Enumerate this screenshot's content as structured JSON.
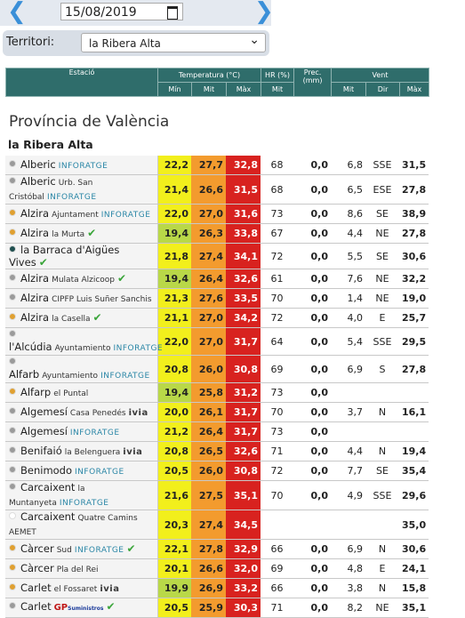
{
  "date": "15/08/2019",
  "territori_label": "Territori:",
  "territori_value": "la Ribera Alta",
  "table_header": {
    "station": "Estació",
    "temp": "Temperatura (°C)",
    "hr": "HR (%)",
    "prec": "Prec. (mm)",
    "wind": "Vent",
    "sub": [
      "Mín",
      "Mit",
      "Màx",
      "Mit",
      "Mit",
      "Dir",
      "Màx"
    ]
  },
  "province": "Província de València",
  "region": "la Ribera Alta",
  "rows": [
    {
      "dot": "#9a9a9a",
      "name": "Alberic",
      "badge": "INFORATGE",
      "min": "22,2",
      "mit": "27,7",
      "max": "32,8",
      "hr": "68",
      "prec": "0,0",
      "vmit": "6,8",
      "dir": "SSE",
      "vmax": "31,5"
    },
    {
      "dot": "#9a9a9a",
      "name": "Alberic",
      "sub": "Urb. San Cristóbal",
      "badge": "INFORATGE",
      "min": "21,4",
      "mit": "26,6",
      "max": "31,5",
      "hr": "68",
      "prec": "0,0",
      "vmit": "6,5",
      "dir": "ESE",
      "vmax": "27,8"
    },
    {
      "dot": "#e0a030",
      "name": "Alzira",
      "sub": "Ajuntament",
      "badge": "INFORATGE",
      "min": "22,0",
      "mit": "27,0",
      "max": "31,6",
      "hr": "73",
      "prec": "0,0",
      "vmit": "8,6",
      "dir": "SE",
      "vmax": "38,9"
    },
    {
      "dot": "#e0a030",
      "name": "Alzira",
      "sub": "la Murta",
      "check": "✔",
      "min": "19,4",
      "mit": "26,3",
      "max": "33,8",
      "hr": "67",
      "prec": "0,0",
      "vmit": "4,4",
      "dir": "NE",
      "vmax": "27,8"
    },
    {
      "dot": "#1f4f4f",
      "name": "la Barraca d'Aigües Vives",
      "check": "✔",
      "min": "21,8",
      "mit": "27,4",
      "max": "34,1",
      "hr": "72",
      "prec": "0,0",
      "vmit": "5,5",
      "dir": "SE",
      "vmax": "30,6"
    },
    {
      "dot": "#9a9a9a",
      "name": "Alzira",
      "sub": "Mulata Alzicoop",
      "check": "✔",
      "min": "19,4",
      "mit": "26,4",
      "max": "32,6",
      "hr": "61",
      "prec": "0,0",
      "vmit": "7,6",
      "dir": "NE",
      "vmax": "32,2"
    },
    {
      "dot": "#9a9a9a",
      "name": "Alzira",
      "sub": "CIPFP Luis Suñer Sanchis",
      "min": "21,3",
      "mit": "27,6",
      "max": "33,5",
      "hr": "70",
      "prec": "0,0",
      "vmit": "1,4",
      "dir": "NE",
      "vmax": "19,0"
    },
    {
      "dot": "#e0a030",
      "name": "Alzira",
      "sub": "la Casella",
      "check": "✔",
      "min": "21,1",
      "mit": "27,0",
      "max": "34,2",
      "hr": "72",
      "prec": "0,0",
      "vmit": "4,0",
      "dir": "E",
      "vmax": "25,7"
    },
    {
      "dot": "#9a9a9a",
      "name": "l'Alcúdia",
      "sub": "Ayuntamiento",
      "badge": "INFORATGE",
      "min": "22,0",
      "mit": "27,0",
      "max": "31,7",
      "hr": "64",
      "prec": "0,0",
      "vmit": "5,4",
      "dir": "SSE",
      "vmax": "29,5"
    },
    {
      "dot": "#9a9a9a",
      "name": "Alfarb",
      "sub": "Ayuntamiento",
      "badge": "INFORATGE",
      "min": "20,8",
      "mit": "26,0",
      "max": "30,8",
      "hr": "69",
      "prec": "0,0",
      "vmit": "6,9",
      "dir": "S",
      "vmax": "27,8"
    },
    {
      "dot": "#e0a030",
      "name": "Alfarp",
      "sub": "el Puntal",
      "min": "19,4",
      "mit": "25,8",
      "max": "31,2",
      "hr": "73",
      "prec": "0,0"
    },
    {
      "dot": "#9a9a9a",
      "name": "Algemesí",
      "sub": "Casa Penedés",
      "badge": "ivia",
      "min": "20,0",
      "mit": "26,1",
      "max": "31,7",
      "hr": "70",
      "prec": "0,0",
      "vmit": "3,7",
      "dir": "N",
      "vmax": "16,1"
    },
    {
      "dot": "#9a9a9a",
      "name": "Algemesí",
      "badge": "INFORATGE",
      "min": "21,2",
      "mit": "26,4",
      "max": "31,7",
      "hr": "73",
      "prec": "0,0"
    },
    {
      "dot": "#9a9a9a",
      "name": "Benifaió",
      "sub": "la Belenguera",
      "badge": "ivia",
      "min": "20,8",
      "mit": "26,5",
      "max": "32,6",
      "hr": "71",
      "prec": "0,0",
      "vmit": "4,4",
      "dir": "N",
      "vmax": "19,4"
    },
    {
      "dot": "#9a9a9a",
      "name": "Benimodo",
      "badge": "INFORATGE",
      "min": "20,5",
      "mit": "26,0",
      "max": "30,8",
      "hr": "72",
      "prec": "0,0",
      "vmit": "7,7",
      "dir": "SE",
      "vmax": "35,4"
    },
    {
      "dot": "#9a9a9a",
      "name": "Carcaixent",
      "sub": "la Muntanyeta",
      "badge": "INFORATGE",
      "min": "21,6",
      "mit": "27,5",
      "max": "35,1",
      "hr": "70",
      "prec": "0,0",
      "vmit": "4,9",
      "dir": "SSE",
      "vmax": "29,6"
    },
    {
      "dot": "#ffffff",
      "name": "Carcaixent",
      "sub": "Quatre Camins AEMET",
      "min": "20,3",
      "mit": "27,4",
      "max": "34,5",
      "vmax": "35,0"
    },
    {
      "dot": "#e0a030",
      "name": "Càrcer",
      "sub": "Sud",
      "badge": "INFORATGE",
      "check": "✔",
      "min": "22,1",
      "mit": "27,8",
      "max": "32,9",
      "hr": "66",
      "prec": "0,0",
      "vmit": "6,9",
      "dir": "N",
      "vmax": "30,6"
    },
    {
      "dot": "#e0a030",
      "name": "Càrcer",
      "sub": "Pla del Rei",
      "min": "20,1",
      "mit": "26,6",
      "max": "32,0",
      "hr": "69",
      "prec": "0,0",
      "vmit": "4,8",
      "dir": "E",
      "vmax": "24,1"
    },
    {
      "dot": "#e0a030",
      "name": "Carlet",
      "sub": "el Fossaret",
      "badge": "ivia",
      "min": "19,9",
      "mit": "26,9",
      "max": "33,2",
      "hr": "66",
      "prec": "0,0",
      "vmit": "3,8",
      "dir": "N",
      "vmax": "15,8"
    },
    {
      "dot": "#9a9a9a",
      "name": "Carlet",
      "badge": "GP",
      "badge_sub": "Suministros",
      "check": "✔",
      "min": "20,5",
      "mit": "25,9",
      "max": "30,3",
      "hr": "71",
      "prec": "0,0",
      "vmit": "8,2",
      "dir": "NE",
      "vmax": "35,1"
    }
  ]
}
